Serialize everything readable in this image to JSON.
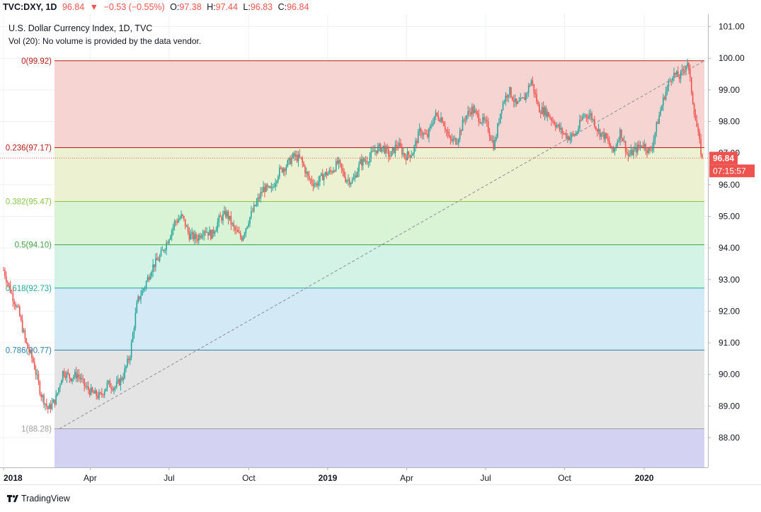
{
  "header": {
    "symbol": "TVC:DXY, 1D",
    "last": "96.84",
    "arrow": "▼",
    "change": "−0.53 (−0.55%)",
    "o_label": "O:",
    "o": "97.38",
    "h_label": "H:",
    "h": "97.44",
    "l_label": "L:",
    "l": "96.83",
    "c_label": "C:",
    "c": "96.84"
  },
  "legend": {
    "title": "U.S. Dollar Currency Index, 1D, TVC",
    "volume_note": "Vol (20): No volume is provided by the data vendor."
  },
  "price_tag": {
    "value": "96.84",
    "countdown": "07:15:57"
  },
  "footer": {
    "brand": "TradingView"
  },
  "colors": {
    "up": "#26a69a",
    "down": "#ef5350"
  },
  "chart_data": {
    "type": "candlestick",
    "ylim": [
      87.0,
      101.5
    ],
    "y_ticks": [
      "88.00",
      "89.00",
      "90.00",
      "91.00",
      "92.00",
      "93.00",
      "94.00",
      "95.00",
      "96.00",
      "97.00",
      "98.00",
      "99.00",
      "100.00",
      "101.00"
    ],
    "x_ticks": [
      "2018",
      "Apr",
      "Jul",
      "Oct",
      "2019",
      "Apr",
      "Jul",
      "Oct",
      "2020"
    ],
    "fib_levels": [
      {
        "label": "0(99.92)",
        "value": 99.92,
        "color": "#b71c1c",
        "fill": "#f6d2d0"
      },
      {
        "label": "0.236(97.17)",
        "value": 97.17,
        "color": "#b71c1c",
        "fill": "#eaf0cf"
      },
      {
        "label": "0.382(95.47)",
        "value": 95.47,
        "color": "#8bc34a",
        "fill": "#d7f2d3"
      },
      {
        "label": "0.5(94.10)",
        "value": 94.1,
        "color": "#43a047",
        "fill": "#d2f2e6"
      },
      {
        "label": "0.618(92.73)",
        "value": 92.73,
        "color": "#26a69a",
        "fill": "#d2e8f5"
      },
      {
        "label": "0.786(90.77)",
        "value": 90.77,
        "color": "#2e7fa8",
        "fill": "#e3e3e3"
      },
      {
        "label": "1(88.28)",
        "value": 88.28,
        "color": "#9e9e9e",
        "fill": "#d1d0f2"
      }
    ],
    "fib_bottom": 87.0,
    "trend_line": {
      "start": {
        "t": 0.08,
        "v": 88.28
      },
      "end": {
        "t": 1.0,
        "v": 99.92
      }
    },
    "last_price": 96.84,
    "closes": [
      93.3,
      92.6,
      92.0,
      91.0,
      90.4,
      89.4,
      88.9,
      89.2,
      90.1,
      89.9,
      90.0,
      89.6,
      89.4,
      89.3,
      89.7,
      89.6,
      89.9,
      90.6,
      92.3,
      92.8,
      93.4,
      93.7,
      94.2,
      94.8,
      95.0,
      94.4,
      94.3,
      94.6,
      94.4,
      94.9,
      95.1,
      94.6,
      94.3,
      94.9,
      95.4,
      95.9,
      95.8,
      96.4,
      96.6,
      96.9,
      96.8,
      96.2,
      96.0,
      96.3,
      96.4,
      96.7,
      96.2,
      96.1,
      96.7,
      96.8,
      97.1,
      97.2,
      96.9,
      97.3,
      96.9,
      97.0,
      97.7,
      97.5,
      98.2,
      98.1,
      97.4,
      97.4,
      98.1,
      98.4,
      98.1,
      97.9,
      97.2,
      98.5,
      99.0,
      98.5,
      98.7,
      99.3,
      98.4,
      98.3,
      98.0,
      97.7,
      97.5,
      97.6,
      98.2,
      98.2,
      97.7,
      97.5,
      97.0,
      97.7,
      96.9,
      97.1,
      97.3,
      97.0,
      98.0,
      98.9,
      99.5,
      99.4,
      99.9,
      98.2,
      96.8
    ]
  }
}
